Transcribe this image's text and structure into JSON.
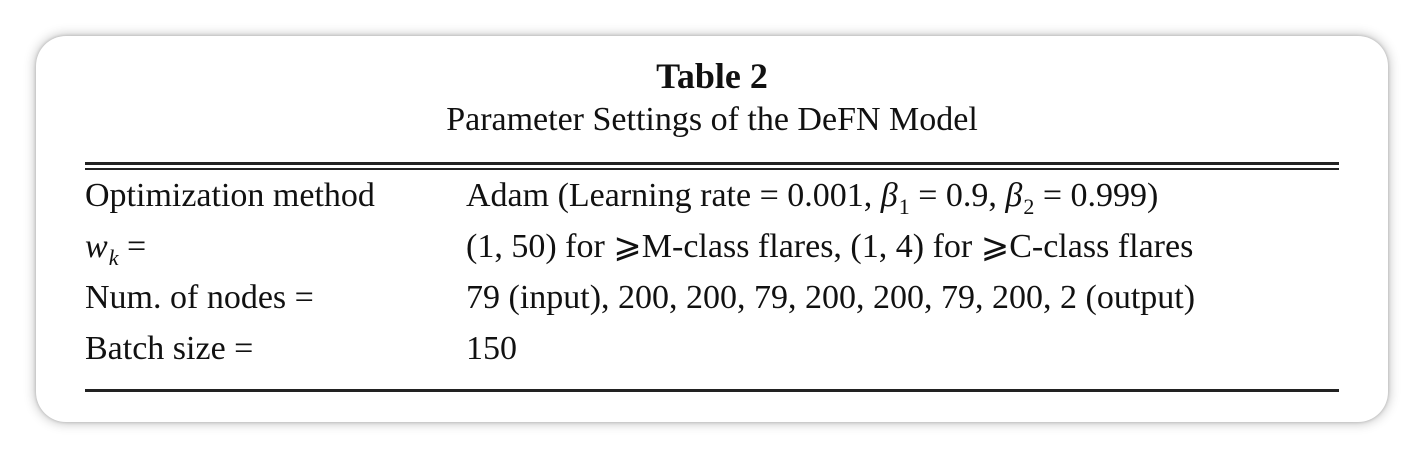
{
  "table": {
    "label": "Table 2",
    "title": "Parameter Settings of the DeFN Model",
    "rows": [
      {
        "param": "Optimization method",
        "value": {
          "prefix": "Adam (Learning rate = 0.001, ",
          "beta1_symbol": "β",
          "beta1_sub": "1",
          "beta1_rest": " = 0.9, ",
          "beta2_symbol": "β",
          "beta2_sub": "2",
          "beta2_rest": " = 0.999)"
        }
      },
      {
        "param": {
          "symbol": "w",
          "sub": "k",
          "rest": " ="
        },
        "value": "(1, 50) for ⩾M-class flares, (1, 4) for ⩾C-class flares"
      },
      {
        "param": "Num. of nodes =",
        "value": "79 (input), 200, 200, 79, 200, 200, 79, 200, 2 (output)"
      },
      {
        "param": "Batch size =",
        "value": "150"
      }
    ]
  }
}
